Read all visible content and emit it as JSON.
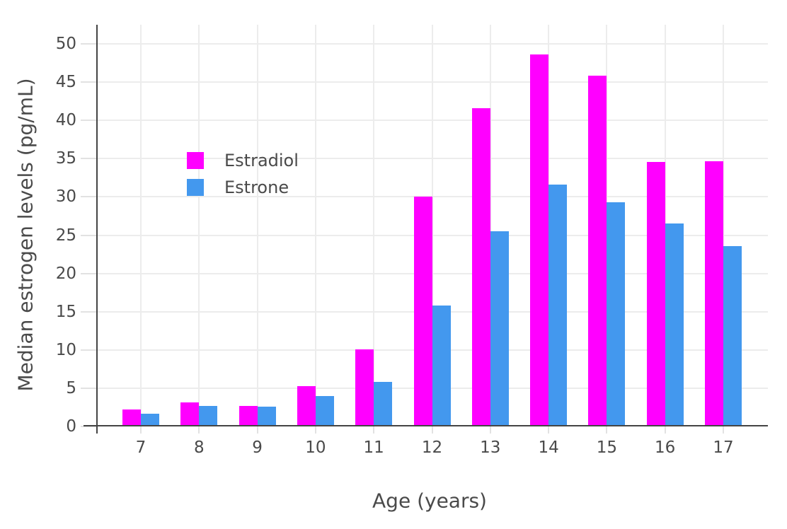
{
  "chart_data": {
    "type": "bar",
    "categories": [
      "7",
      "8",
      "9",
      "10",
      "11",
      "12",
      "13",
      "14",
      "15",
      "16",
      "17"
    ],
    "series": [
      {
        "name": "Estradiol",
        "color": "#FF00FF",
        "values": [
          2.2,
          3.1,
          2.7,
          5.3,
          10.1,
          30.0,
          41.6,
          48.6,
          45.8,
          34.6,
          34.7
        ]
      },
      {
        "name": "Estrone",
        "color": "#4398EE",
        "values": [
          1.7,
          2.7,
          2.6,
          4.0,
          5.8,
          15.8,
          25.5,
          31.6,
          29.3,
          26.5,
          23.6
        ]
      }
    ],
    "title": "",
    "xlabel": "Age (years)",
    "ylabel": "Median estrogen levels (pg/mL)",
    "ylim": [
      0,
      52.5
    ],
    "yticks": [
      0,
      5,
      10,
      15,
      20,
      25,
      30,
      35,
      40,
      45,
      50
    ],
    "grid": true,
    "legend_position": "inside-top-left",
    "colors": {
      "axis": "#444444",
      "grid": "#ECECEC",
      "tick_mark": "#E2E2E2",
      "text": "#4A4A4A",
      "background": "#FFFFFF"
    }
  }
}
